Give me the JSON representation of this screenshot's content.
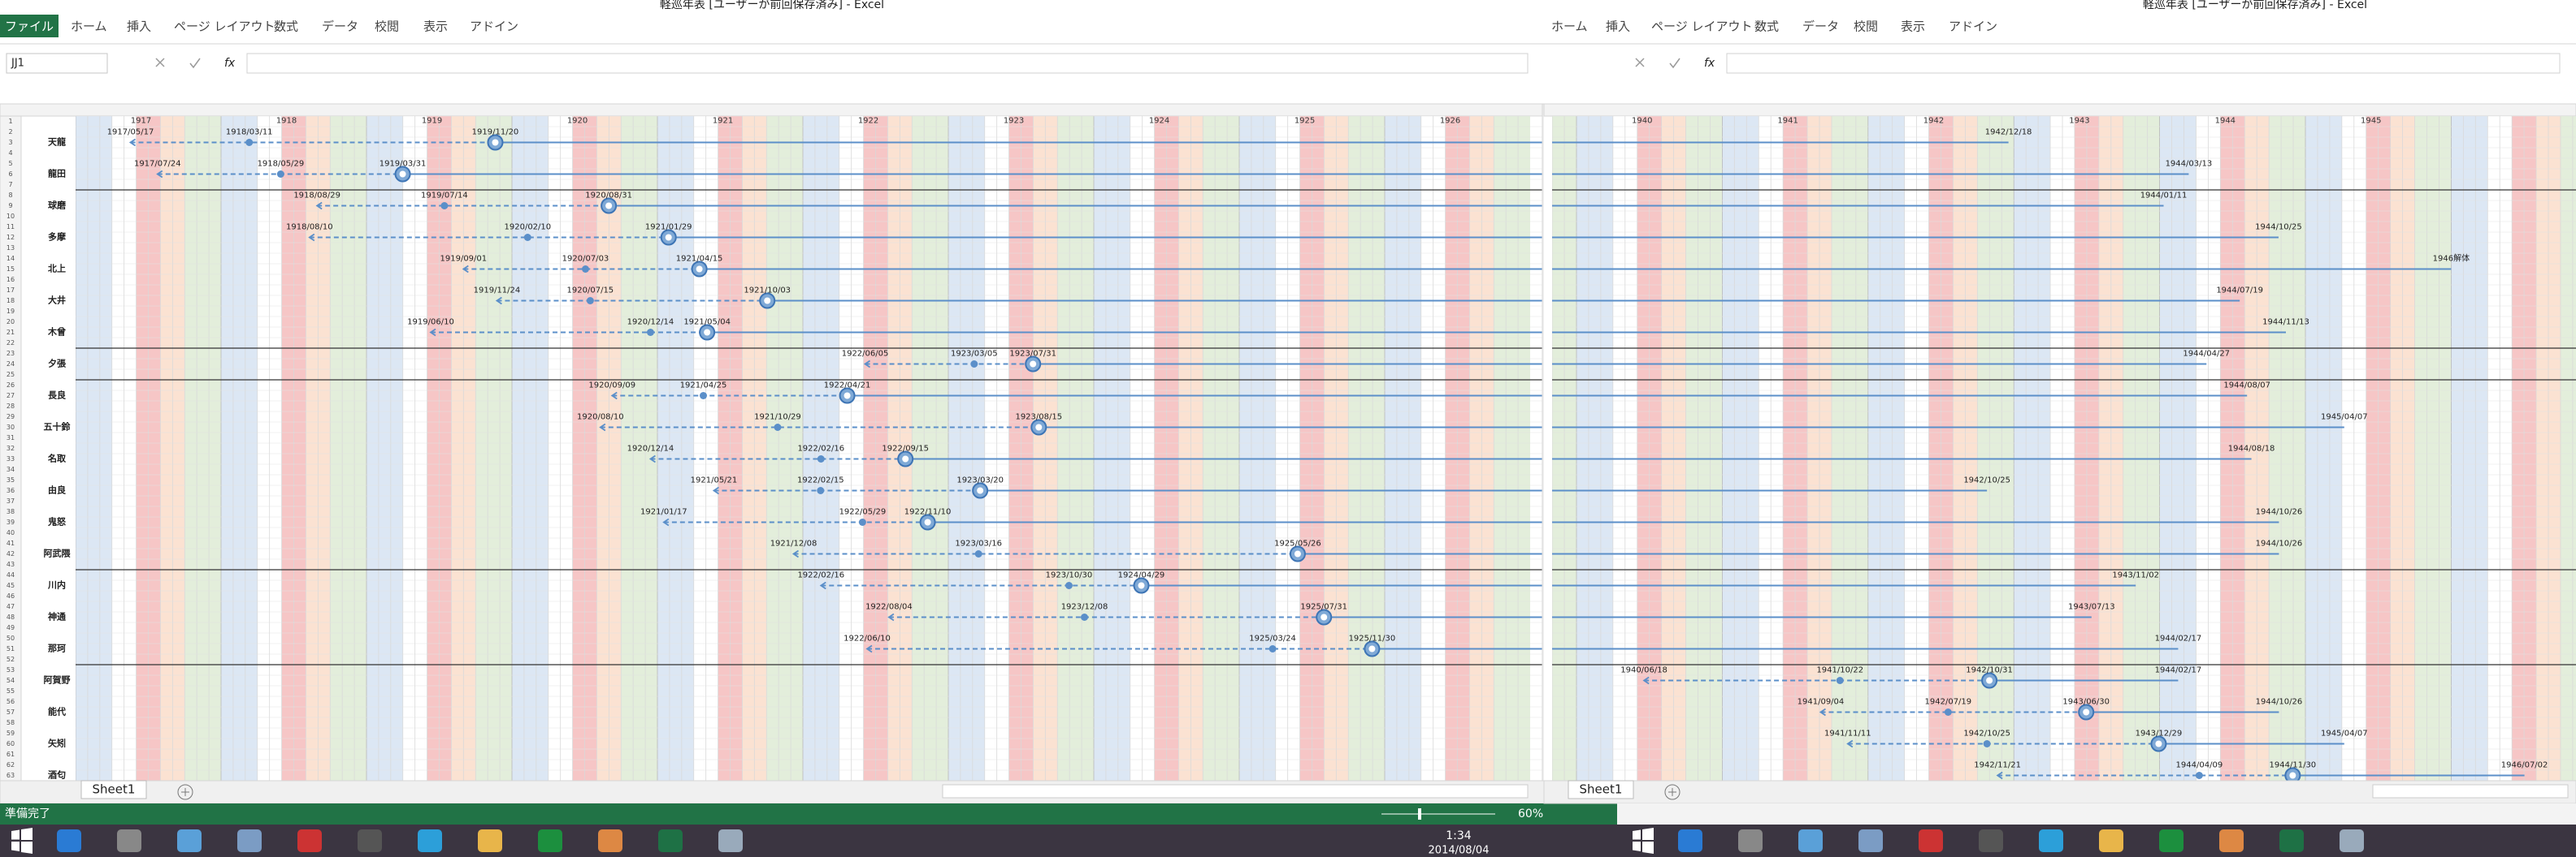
{
  "windows": [
    {
      "title": "軽巡年表 [ユーザーが前回保存済み] - Excel",
      "file_tab": "ファイル",
      "tabs": [
        "ホーム",
        "挿入",
        "ページ レイアウト",
        "数式",
        "データ",
        "校閲",
        "表示",
        "アドイン"
      ],
      "name_box": "JJ1",
      "fx": "fx",
      "years": [
        1917,
        1918,
        1919,
        1920,
        1921,
        1922,
        1923,
        1924,
        1925,
        1926
      ],
      "sheet_tab": "Sheet1",
      "status": "準備完了",
      "zoom": "60%"
    },
    {
      "title": "軽巡年表 [ユーザーが前回保存済み] - Excel",
      "tabs": [
        "ホーム",
        "挿入",
        "ページ レイアウト",
        "数式",
        "データ",
        "校閲",
        "表示",
        "アドイン"
      ],
      "fx": "fx",
      "years": [
        1940,
        1941,
        1942,
        1943,
        1944,
        1945
      ],
      "sheet_tab": "Sheet1"
    }
  ],
  "row_numbers": [
    1,
    2,
    3,
    4,
    5,
    6,
    7,
    8,
    9,
    10,
    11,
    12,
    13,
    14,
    15,
    16,
    17,
    18,
    19,
    20,
    21,
    22,
    23,
    24,
    25,
    26,
    27,
    28,
    29,
    30,
    31,
    32,
    33,
    34,
    35,
    36,
    37,
    38,
    39,
    40,
    41,
    42,
    43,
    44,
    45,
    46,
    47,
    48,
    49,
    50,
    51,
    52,
    53,
    54,
    55,
    56,
    57,
    58,
    59,
    60,
    61,
    62,
    63
  ],
  "ships": [
    {
      "name": "天龍",
      "dates": [
        "1917/05/17",
        "1918/03/11",
        "1919/11/20"
      ],
      "end": "1942/12/18"
    },
    {
      "name": "龍田",
      "dates": [
        "1917/07/24",
        "1918/05/29",
        "1919/03/31"
      ],
      "end": "1944/03/13"
    },
    {
      "name": "球磨",
      "dates": [
        "1918/08/29",
        "1919/07/14",
        "1920/08/31"
      ],
      "end": "1944/01/11"
    },
    {
      "name": "多摩",
      "dates": [
        "1918/08/10",
        "1920/02/10",
        "1921/01/29"
      ],
      "end": "1944/10/25"
    },
    {
      "name": "北上",
      "dates": [
        "1919/09/01",
        "1920/07/03",
        "1921/04/15"
      ],
      "end": "1946解体"
    },
    {
      "name": "大井",
      "dates": [
        "1919/11/24",
        "1920/07/15",
        "1921/10/03"
      ],
      "end": "1944/07/19"
    },
    {
      "name": "木曾",
      "dates": [
        "1919/06/10",
        "1920/12/14",
        "1921/05/04"
      ],
      "end": "1944/11/13"
    },
    {
      "name": "夕張",
      "dates": [
        "1922/06/05",
        "1923/03/05",
        "1923/07/31"
      ],
      "end": "1944/04/27"
    },
    {
      "name": "長良",
      "dates": [
        "1920/09/09",
        "1921/04/25",
        "1922/04/21"
      ],
      "end": "1944/08/07"
    },
    {
      "name": "五十鈴",
      "dates": [
        "1920/08/10",
        "1921/10/29",
        "1923/08/15"
      ],
      "end": "1945/04/07"
    },
    {
      "name": "名取",
      "dates": [
        "1920/12/14",
        "1922/02/16",
        "1922/09/15"
      ],
      "end": "1944/08/18"
    },
    {
      "name": "由良",
      "dates": [
        "1921/05/21",
        "1922/02/15",
        "1923/03/20"
      ],
      "end": "1942/10/25"
    },
    {
      "name": "鬼怒",
      "dates": [
        "1921/01/17",
        "1922/05/29",
        "1922/11/10"
      ],
      "end": "1944/10/26"
    },
    {
      "name": "阿武隈",
      "dates": [
        "1921/12/08",
        "1923/03/16",
        "1925/05/26"
      ],
      "end": "1944/10/26"
    },
    {
      "name": "川内",
      "dates": [
        "1922/02/16",
        "1923/10/30",
        "1924/04/29"
      ],
      "end": "1943/11/02"
    },
    {
      "name": "神通",
      "dates": [
        "1922/08/04",
        "1923/12/08",
        "1925/07/31"
      ],
      "end": "1943/07/13"
    },
    {
      "name": "那珂",
      "dates": [
        "1922/06/10",
        "1925/03/24",
        "1925/11/30"
      ],
      "end": "1944/02/17"
    },
    {
      "name": "阿賀野",
      "dates": [
        "1940/06/18",
        "1941/10/22",
        "1942/10/31"
      ],
      "end": "1944/02/17"
    },
    {
      "name": "能代",
      "dates": [
        "1941/09/04",
        "1942/07/19",
        "1943/06/30"
      ],
      "end": "1944/10/26"
    },
    {
      "name": "矢矧",
      "dates": [
        "1941/11/11",
        "1942/10/25",
        "1943/12/29"
      ],
      "end": "1945/04/07"
    },
    {
      "name": "酒匂",
      "dates": [
        "1942/11/21",
        "1944/04/09",
        "1944/11/30"
      ],
      "end": "1946/07/02"
    }
  ],
  "taskbar": {
    "time": "1:34",
    "date": "2014/08/04"
  }
}
